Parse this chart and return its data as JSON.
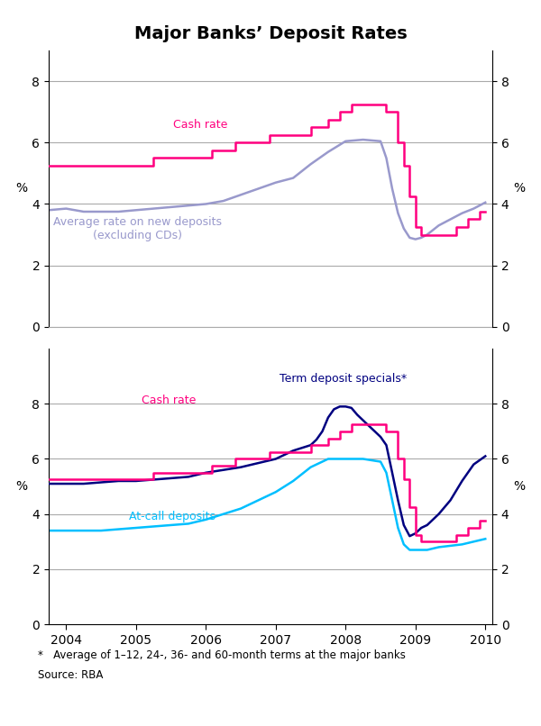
{
  "title": "Major Banks’ Deposit Rates",
  "footnote": "*   Average of 1–12, 24-, 36- and 60-month terms at the major banks",
  "source": "Source: RBA",
  "top_panel": {
    "ylim": [
      0,
      9
    ],
    "yticks": [
      0,
      2,
      4,
      6,
      8
    ],
    "ylabel_left": "%",
    "ylabel_right": "%",
    "cash_rate": {
      "color": "#FF007F",
      "label": "Cash rate",
      "x": [
        2003.75,
        2003.917,
        2003.917,
        2004.083,
        2004.083,
        2004.25,
        2004.25,
        2004.583,
        2004.583,
        2004.917,
        2004.917,
        2005.083,
        2005.083,
        2005.25,
        2005.25,
        2005.583,
        2005.583,
        2005.75,
        2005.75,
        2006.083,
        2006.083,
        2006.25,
        2006.25,
        2006.417,
        2006.417,
        2006.583,
        2006.583,
        2006.75,
        2006.75,
        2006.917,
        2006.917,
        2007.083,
        2007.083,
        2007.5,
        2007.5,
        2007.583,
        2007.583,
        2007.75,
        2007.75,
        2007.917,
        2007.917,
        2008.0,
        2008.0,
        2008.083,
        2008.083,
        2008.25,
        2008.25,
        2008.417,
        2008.417,
        2008.583,
        2008.583,
        2008.75,
        2008.75,
        2008.833,
        2008.833,
        2008.917,
        2008.917,
        2009.0,
        2009.0,
        2009.083,
        2009.083,
        2009.167,
        2009.167,
        2009.333,
        2009.333,
        2009.583,
        2009.583,
        2009.75,
        2009.75,
        2009.917,
        2009.917,
        2010.0
      ],
      "y": [
        5.25,
        5.25,
        5.25,
        5.25,
        5.25,
        5.25,
        5.25,
        5.25,
        5.25,
        5.25,
        5.25,
        5.25,
        5.25,
        5.25,
        5.5,
        5.5,
        5.5,
        5.5,
        5.5,
        5.5,
        5.75,
        5.75,
        5.75,
        5.75,
        6.0,
        6.0,
        6.0,
        6.0,
        6.0,
        6.0,
        6.25,
        6.25,
        6.25,
        6.25,
        6.5,
        6.5,
        6.5,
        6.5,
        6.75,
        6.75,
        7.0,
        7.0,
        7.0,
        7.0,
        7.25,
        7.25,
        7.25,
        7.25,
        7.25,
        7.25,
        7.0,
        7.0,
        6.0,
        6.0,
        5.25,
        5.25,
        4.25,
        4.25,
        3.25,
        3.25,
        3.0,
        3.0,
        3.0,
        3.0,
        3.0,
        3.0,
        3.25,
        3.25,
        3.5,
        3.5,
        3.75,
        3.75
      ]
    },
    "avg_rate": {
      "color": "#9999CC",
      "label": "Average rate on new deposits\n(excluding CDs)",
      "x": [
        2003.75,
        2004.0,
        2004.25,
        2004.5,
        2004.75,
        2005.0,
        2005.25,
        2005.5,
        2005.75,
        2006.0,
        2006.25,
        2006.5,
        2006.75,
        2007.0,
        2007.25,
        2007.5,
        2007.75,
        2008.0,
        2008.25,
        2008.5,
        2008.583,
        2008.667,
        2008.75,
        2008.833,
        2008.917,
        2009.0,
        2009.083,
        2009.167,
        2009.25,
        2009.333,
        2009.5,
        2009.667,
        2009.833,
        2010.0
      ],
      "y": [
        3.8,
        3.85,
        3.75,
        3.75,
        3.75,
        3.8,
        3.85,
        3.9,
        3.95,
        4.0,
        4.1,
        4.3,
        4.5,
        4.7,
        4.85,
        5.3,
        5.7,
        6.05,
        6.1,
        6.05,
        5.5,
        4.5,
        3.7,
        3.2,
        2.9,
        2.85,
        2.9,
        3.0,
        3.15,
        3.3,
        3.5,
        3.7,
        3.85,
        4.05
      ]
    }
  },
  "bottom_panel": {
    "ylim": [
      0,
      10
    ],
    "yticks": [
      0,
      2,
      4,
      6,
      8
    ],
    "ylabel_left": "%",
    "ylabel_right": "%",
    "cash_rate": {
      "color": "#FF007F",
      "label": "Cash rate",
      "x": [
        2003.75,
        2003.917,
        2003.917,
        2004.083,
        2004.083,
        2004.25,
        2004.25,
        2004.583,
        2004.583,
        2004.917,
        2004.917,
        2005.083,
        2005.083,
        2005.25,
        2005.25,
        2005.583,
        2005.583,
        2005.75,
        2005.75,
        2006.083,
        2006.083,
        2006.25,
        2006.25,
        2006.417,
        2006.417,
        2006.583,
        2006.583,
        2006.75,
        2006.75,
        2006.917,
        2006.917,
        2007.083,
        2007.083,
        2007.5,
        2007.5,
        2007.583,
        2007.583,
        2007.75,
        2007.75,
        2007.917,
        2007.917,
        2008.0,
        2008.0,
        2008.083,
        2008.083,
        2008.25,
        2008.25,
        2008.417,
        2008.417,
        2008.583,
        2008.583,
        2008.75,
        2008.75,
        2008.833,
        2008.833,
        2008.917,
        2008.917,
        2009.0,
        2009.0,
        2009.083,
        2009.083,
        2009.167,
        2009.167,
        2009.333,
        2009.333,
        2009.583,
        2009.583,
        2009.75,
        2009.75,
        2009.917,
        2009.917,
        2010.0
      ],
      "y": [
        5.25,
        5.25,
        5.25,
        5.25,
        5.25,
        5.25,
        5.25,
        5.25,
        5.25,
        5.25,
        5.25,
        5.25,
        5.25,
        5.25,
        5.5,
        5.5,
        5.5,
        5.5,
        5.5,
        5.5,
        5.75,
        5.75,
        5.75,
        5.75,
        6.0,
        6.0,
        6.0,
        6.0,
        6.0,
        6.0,
        6.25,
        6.25,
        6.25,
        6.25,
        6.5,
        6.5,
        6.5,
        6.5,
        6.75,
        6.75,
        7.0,
        7.0,
        7.0,
        7.0,
        7.25,
        7.25,
        7.25,
        7.25,
        7.25,
        7.25,
        7.0,
        7.0,
        6.0,
        6.0,
        5.25,
        5.25,
        4.25,
        4.25,
        3.25,
        3.25,
        3.0,
        3.0,
        3.0,
        3.0,
        3.0,
        3.0,
        3.25,
        3.25,
        3.5,
        3.5,
        3.75,
        3.75
      ]
    },
    "term_deposit": {
      "color": "#000080",
      "label": "Term deposit specials*",
      "x": [
        2003.75,
        2004.0,
        2004.25,
        2004.5,
        2004.75,
        2005.0,
        2005.25,
        2005.5,
        2005.75,
        2006.0,
        2006.25,
        2006.5,
        2006.75,
        2007.0,
        2007.25,
        2007.5,
        2007.583,
        2007.667,
        2007.75,
        2007.833,
        2007.917,
        2008.0,
        2008.083,
        2008.167,
        2008.25,
        2008.333,
        2008.417,
        2008.5,
        2008.583,
        2008.667,
        2008.75,
        2008.833,
        2008.917,
        2009.0,
        2009.083,
        2009.167,
        2009.25,
        2009.333,
        2009.5,
        2009.667,
        2009.833,
        2010.0
      ],
      "y": [
        5.1,
        5.1,
        5.1,
        5.15,
        5.2,
        5.2,
        5.25,
        5.3,
        5.35,
        5.5,
        5.6,
        5.7,
        5.85,
        6.0,
        6.3,
        6.5,
        6.7,
        7.0,
        7.5,
        7.8,
        7.9,
        7.9,
        7.85,
        7.6,
        7.4,
        7.2,
        7.0,
        6.8,
        6.5,
        5.5,
        4.5,
        3.6,
        3.2,
        3.3,
        3.5,
        3.6,
        3.8,
        4.0,
        4.5,
        5.2,
        5.8,
        6.1
      ]
    },
    "at_call": {
      "color": "#00BFFF",
      "label": "At-call deposits",
      "x": [
        2003.75,
        2004.0,
        2004.25,
        2004.5,
        2004.75,
        2005.0,
        2005.25,
        2005.5,
        2005.75,
        2006.0,
        2006.25,
        2006.5,
        2006.75,
        2007.0,
        2007.25,
        2007.5,
        2007.75,
        2008.0,
        2008.25,
        2008.5,
        2008.583,
        2008.667,
        2008.75,
        2008.833,
        2008.917,
        2009.0,
        2009.083,
        2009.167,
        2009.25,
        2009.333,
        2009.5,
        2009.667,
        2009.833,
        2010.0
      ],
      "y": [
        3.4,
        3.4,
        3.4,
        3.4,
        3.45,
        3.5,
        3.55,
        3.6,
        3.65,
        3.8,
        4.0,
        4.2,
        4.5,
        4.8,
        5.2,
        5.7,
        6.0,
        6.0,
        6.0,
        5.9,
        5.5,
        4.5,
        3.5,
        2.9,
        2.7,
        2.7,
        2.7,
        2.7,
        2.75,
        2.8,
        2.85,
        2.9,
        3.0,
        3.1
      ]
    }
  },
  "xlim": [
    2003.75,
    2010.1
  ],
  "xticks": [
    2004,
    2005,
    2006,
    2007,
    2008,
    2009,
    2010
  ],
  "xticklabels": [
    "2004",
    "2005",
    "2006",
    "2007",
    "2008",
    "2009",
    "2010"
  ],
  "background_color": "#FFFFFF",
  "grid_color": "#AAAAAA",
  "title_fontsize": 14,
  "label_fontsize": 9,
  "tick_fontsize": 10
}
